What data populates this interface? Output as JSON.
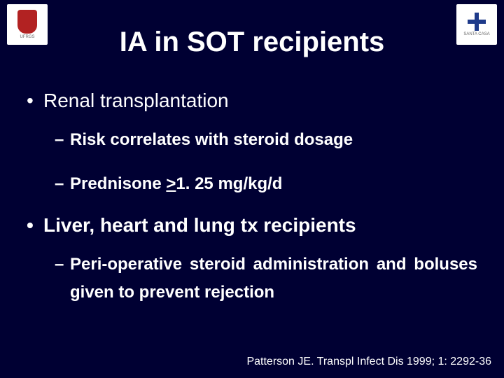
{
  "background_color": "#000033",
  "text_color": "#ffffff",
  "logos": {
    "left": {
      "name": "ufrgs",
      "label": "UFRGS",
      "crest_color": "#b22222"
    },
    "right": {
      "name": "santa-casa",
      "label": "SANTA CASA",
      "cross_color": "#1e3a8a"
    }
  },
  "title": "IA in SOT recipients",
  "bullets": [
    {
      "level": 1,
      "bold": false,
      "text": "Renal transplantation"
    },
    {
      "level": 2,
      "bold": true,
      "text": "Risk correlates with steroid dosage"
    },
    {
      "level": 2,
      "bold": true,
      "prefix": "Prednisone ",
      "underline": ">",
      "suffix": "1. 25 mg/kg/d"
    },
    {
      "level": 1,
      "bold": true,
      "text": "Liver, heart and lung tx recipients"
    },
    {
      "level": 2,
      "bold": true,
      "text": "Peri-operative steroid administration and boluses given to prevent rejection"
    }
  ],
  "citation": "Patterson JE. Transpl Infect Dis 1999; 1: 2292-36"
}
